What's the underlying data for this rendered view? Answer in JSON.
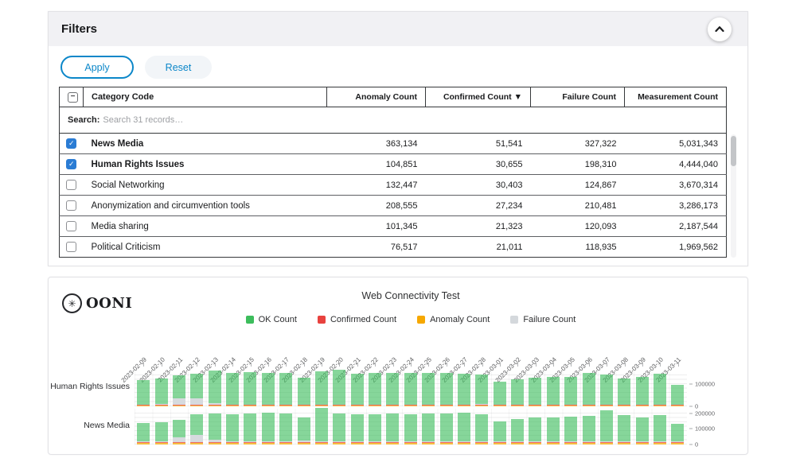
{
  "filters_panel": {
    "title": "Filters",
    "apply_label": "Apply",
    "reset_label": "Reset",
    "table": {
      "select_toggle": "−",
      "columns": [
        "Category Code",
        "Anomaly Count",
        "Confirmed Count ▼",
        "Failure Count",
        "Measurement Count"
      ],
      "search_label": "Search:",
      "search_placeholder": "Search 31 records…",
      "rows": [
        {
          "checked": true,
          "category": "News Media",
          "anomaly": "363,134",
          "confirmed": "51,541",
          "failure": "327,322",
          "measurement": "5,031,343"
        },
        {
          "checked": true,
          "category": "Human Rights Issues",
          "anomaly": "104,851",
          "confirmed": "30,655",
          "failure": "198,310",
          "measurement": "4,444,040"
        },
        {
          "checked": false,
          "category": "Social Networking",
          "anomaly": "132,447",
          "confirmed": "30,403",
          "failure": "124,867",
          "measurement": "3,670,314"
        },
        {
          "checked": false,
          "category": "Anonymization and circumvention tools",
          "anomaly": "208,555",
          "confirmed": "27,234",
          "failure": "210,481",
          "measurement": "3,286,173"
        },
        {
          "checked": false,
          "category": "Media sharing",
          "anomaly": "101,345",
          "confirmed": "21,323",
          "failure": "120,093",
          "measurement": "2,187,544"
        },
        {
          "checked": false,
          "category": "Political Criticism",
          "anomaly": "76,517",
          "confirmed": "21,011",
          "failure": "118,935",
          "measurement": "1,969,562"
        }
      ]
    }
  },
  "chart_panel": {
    "logo_text": "OONI",
    "logo_glyph": "✳",
    "title": "Web Connectivity Test",
    "legend": [
      {
        "label": "OK Count",
        "color": "#3cbd5c"
      },
      {
        "label": "Confirmed Count",
        "color": "#e8423e"
      },
      {
        "label": "Anomaly Count",
        "color": "#f6a801"
      },
      {
        "label": "Failure Count",
        "color": "#d4d8dc"
      }
    ]
  },
  "chart_data": {
    "type": "bar",
    "stacked": true,
    "title": "Web Connectivity Test",
    "legend_position": "top",
    "grid": true,
    "colors": {
      "ok": "#3cbd5c",
      "confirmed": "#e8423e",
      "anomaly": "#f6a801",
      "failure": "#d4d8dc"
    },
    "x": [
      "2023-02-09",
      "2023-02-10",
      "2023-02-11",
      "2023-02-12",
      "2023-02-13",
      "2023-02-14",
      "2023-02-15",
      "2023-02-16",
      "2023-02-17",
      "2023-02-18",
      "2023-02-19",
      "2023-02-20",
      "2023-02-21",
      "2023-02-22",
      "2023-02-23",
      "2023-02-24",
      "2023-02-25",
      "2023-02-26",
      "2023-02-27",
      "2023-02-28",
      "2023-03-01",
      "2023-03-02",
      "2023-03-03",
      "2023-03-04",
      "2023-03-05",
      "2023-03-06",
      "2023-03-07",
      "2023-03-08",
      "2023-03-09",
      "2023-03-10",
      "2023-03-11"
    ],
    "rows": [
      {
        "category": "Human Rights Issues",
        "axis_max": 160000,
        "yticks": [
          {
            "label": "100000",
            "value": 100000
          },
          {
            "label": "0",
            "value": 0
          }
        ],
        "series": [
          {
            "name": "OK Count",
            "values": [
              112000,
              114000,
              103000,
              108000,
              146000,
              143000,
              145000,
              143000,
              142000,
              120000,
              151000,
              158000,
              139000,
              143000,
              144000,
              143000,
              144000,
              142000,
              140000,
              132000,
              103000,
              113000,
              120000,
              124000,
              126000,
              143000,
              134000,
              118000,
              126000,
              139000,
              90000
            ]
          },
          {
            "name": "Confirmed Count",
            "values": [
              900,
              1000,
              1100,
              1000,
              1200,
              1100,
              1000,
              1000,
              1100,
              900,
              1200,
              1100,
              1000,
              1000,
              1000,
              1100,
              1000,
              900,
              1000,
              1000,
              800,
              900,
              1000,
              1000,
              1000,
              1100,
              1000,
              900,
              1000,
              1000,
              800
            ]
          },
          {
            "name": "Anomaly Count",
            "values": [
              3200,
              3300,
              3100,
              3200,
              3600,
              3500,
              3400,
              3500,
              3400,
              3000,
              3700,
              3600,
              3400,
              3500,
              3400,
              3500,
              3400,
              3300,
              3400,
              3300,
              2800,
              3000,
              3200,
              3300,
              3300,
              3600,
              3400,
              3100,
              3300,
              3500,
              2600
            ]
          },
          {
            "name": "Failure Count",
            "values": [
              1500,
              1800,
              27000,
              30000,
              6000,
              1500,
              1400,
              1300,
              1400,
              1600,
              1300,
              1200,
              1300,
              1200,
              1300,
              1200,
              1300,
              1400,
              1500,
              2600,
              1200,
              1100,
              1300,
              1200,
              1300,
              1500,
              1300,
              1400,
              1200,
              1100,
              1300
            ]
          }
        ]
      },
      {
        "category": "News Media",
        "axis_max": 230000,
        "yticks": [
          {
            "label": "200000",
            "value": 200000
          },
          {
            "label": "100000",
            "value": 100000
          },
          {
            "label": "0",
            "value": 0
          }
        ],
        "series": [
          {
            "name": "OK Count",
            "values": [
              115000,
              120000,
              112000,
              135000,
              172000,
              172000,
              178000,
              180000,
              176000,
              148000,
              210000,
              178000,
              172000,
              174000,
              176000,
              174000,
              176000,
              178000,
              182000,
              172000,
              128000,
              142000,
              152000,
              154000,
              156000,
              160000,
              196000,
              168000,
              150000,
              164000,
              112000
            ]
          },
          {
            "name": "Confirmed Count",
            "values": [
              1500,
              1700,
              1800,
              1500,
              1800,
              1900,
              1800,
              1700,
              1800,
              1500,
              1700,
              1800,
              1900,
              1800,
              1900,
              2000,
              1800,
              1800,
              1700,
              1600,
              1500,
              1600,
              1700,
              1800,
              1900,
              1800,
              2000,
              1900,
              1800,
              1900,
              1400
            ]
          },
          {
            "name": "Anomaly Count",
            "values": [
              12000,
              12000,
              11000,
              13000,
              12000,
              12000,
              12000,
              13000,
              12000,
              11000,
              13000,
              12000,
              12000,
              12000,
              12000,
              13000,
              12000,
              12000,
              12000,
              12000,
              11000,
              12000,
              12000,
              12000,
              12000,
              12000,
              13000,
              12000,
              12000,
              13000,
              10000
            ]
          },
          {
            "name": "Failure Count",
            "values": [
              3000,
              4000,
              28000,
              42000,
              12000,
              4000,
              4000,
              4000,
              4000,
              8000,
              4000,
              4000,
              4000,
              3000,
              3000,
              3000,
              3000,
              3000,
              3000,
              6000,
              3000,
              3000,
              3000,
              4000,
              3000,
              4000,
              5000,
              6000,
              3000,
              3000,
              3000
            ]
          }
        ]
      }
    ]
  }
}
